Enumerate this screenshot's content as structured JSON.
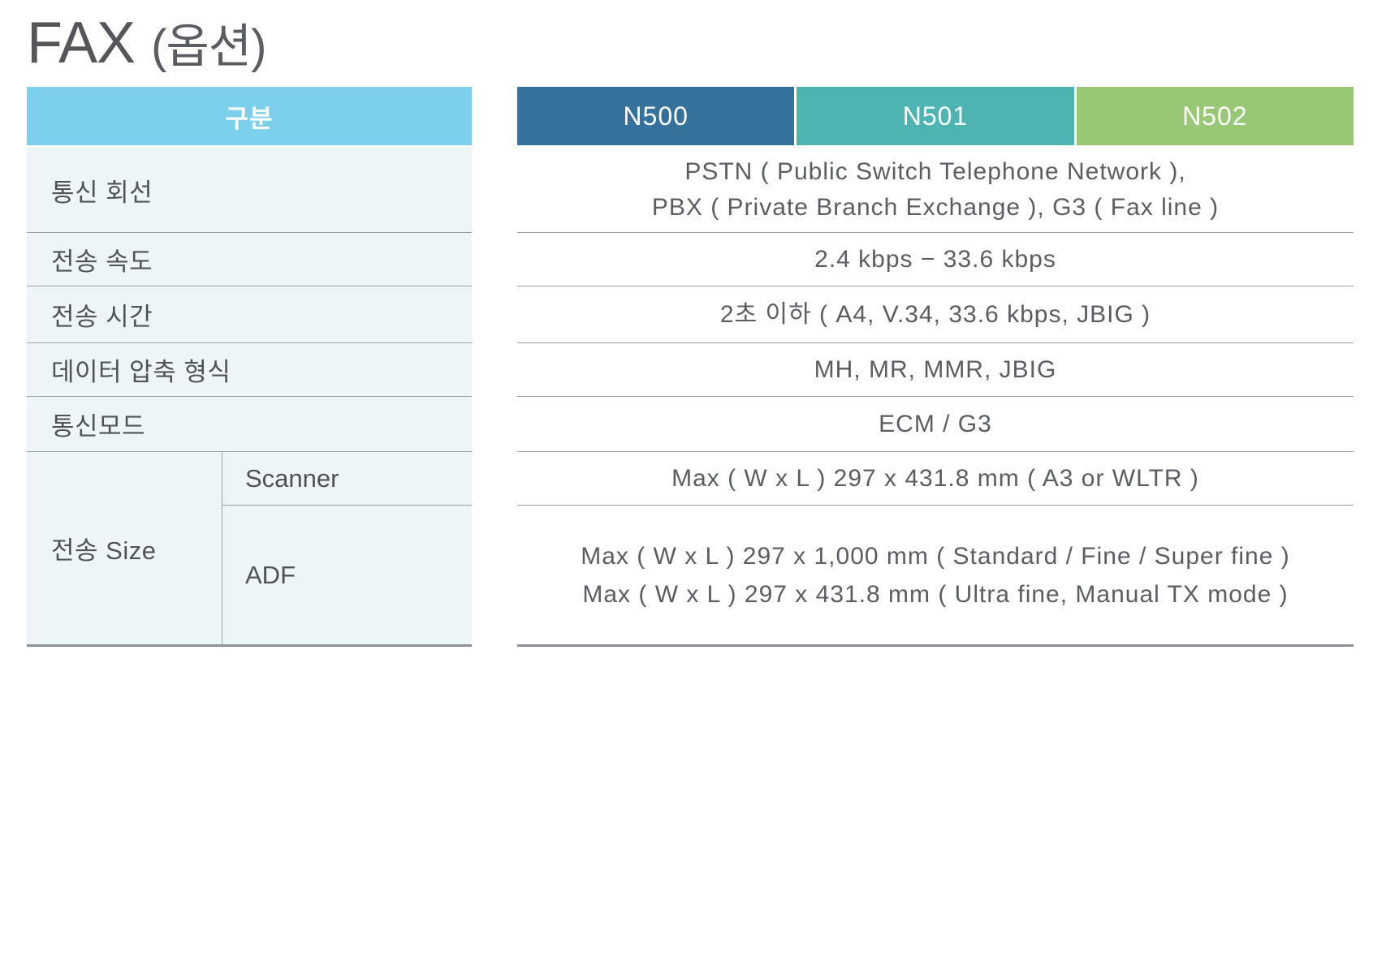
{
  "title": {
    "main": "FAX",
    "suffix": "(옵션)"
  },
  "table": {
    "category_header": "구분",
    "model_headers": [
      "N500",
      "N501",
      "N502"
    ],
    "size_label": "전송 Size",
    "rows": [
      {
        "label": "통신 회선",
        "value": "PSTN ( Public Switch Telephone Network ),\nPBX ( Private Branch Exchange ), G3 ( Fax line )"
      },
      {
        "label": "전송 속도",
        "value": "2.4 kbps − 33.6 kbps"
      },
      {
        "label": "전송 시간",
        "value": "2초 이하 ( A4, V.34, 33.6 kbps, JBIG )"
      },
      {
        "label": "데이터 압축 형식",
        "value": "MH, MR, MMR, JBIG"
      },
      {
        "label": "통신모드",
        "value": "ECM / G3"
      },
      {
        "label": "Scanner",
        "value": "Max ( W x L ) 297 x 431.8 mm ( A3 or WLTR )"
      },
      {
        "label": "ADF",
        "value": "Max ( W x L ) 297 x 1,000 mm ( Standard / Fine / Super fine )\nMax ( W x L ) 297 x 431.8 mm ( Ultra fine, Manual TX mode )"
      }
    ],
    "colors": {
      "category_header_bg": "#7dd0ec",
      "n500_bg": "#35719a",
      "n501_bg": "#4db4b1",
      "n502_bg": "#98c775",
      "row_bg": "#edf5f8",
      "separator": "#99a0a6",
      "bottom_border": "#8a9196"
    }
  }
}
